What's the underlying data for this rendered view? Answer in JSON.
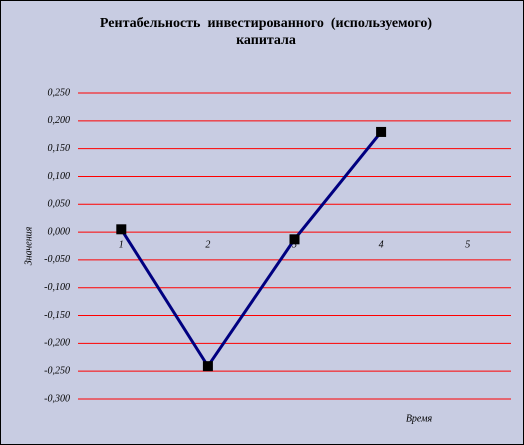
{
  "chart_data": {
    "type": "line",
    "title": "Рентабельность  инвестированного  (используемого) капитала",
    "x_label": "Время",
    "y_label": "Значения",
    "categories": [
      "1",
      "2",
      "3",
      "4",
      "5"
    ],
    "series": [
      {
        "name": "Рентабельность",
        "color": "#000080",
        "values": [
          0.005,
          -0.241,
          -0.013,
          0.18,
          null
        ]
      }
    ],
    "ylim": [
      -0.3,
      0.25
    ],
    "yticks": [
      {
        "value": -0.3,
        "label": "-0,300"
      },
      {
        "value": -0.25,
        "label": "-0,250"
      },
      {
        "value": -0.2,
        "label": "-0,200"
      },
      {
        "value": -0.15,
        "label": "-0,150"
      },
      {
        "value": -0.1,
        "label": "-0,100"
      },
      {
        "value": -0.05,
        "label": "-0,050"
      },
      {
        "value": 0,
        "label": "0,000"
      },
      {
        "value": 0.05,
        "label": "0,050"
      },
      {
        "value": 0.1,
        "label": "0,100"
      },
      {
        "value": 0.15,
        "label": "0,150"
      },
      {
        "value": 0.2,
        "label": "0,200"
      },
      {
        "value": 0.25,
        "label": "0,250"
      }
    ],
    "grid": true,
    "grid_color": "#ff0000",
    "marker_color": "#000000"
  }
}
